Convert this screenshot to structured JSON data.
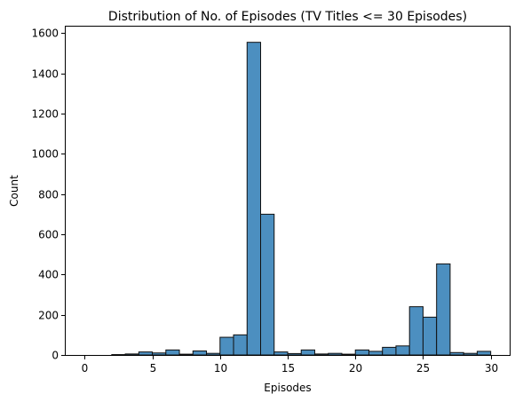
{
  "chart_data": {
    "type": "bar",
    "title": "Distribution of No. of Episodes (TV Titles <= 30 Episodes)",
    "xlabel": "Episodes",
    "ylabel": "Count",
    "xlim": [
      -1.4,
      31.4
    ],
    "ylim": [
      0,
      1633
    ],
    "xticks": [
      0,
      5,
      10,
      15,
      20,
      25,
      30
    ],
    "yticks": [
      0,
      200,
      400,
      600,
      800,
      1000,
      1200,
      1400,
      1600
    ],
    "bar_color": "#4c8fc0",
    "edge_color": "#111111",
    "grid": false,
    "bins": [
      {
        "start": 1,
        "end": 2,
        "value": 0
      },
      {
        "start": 2,
        "end": 3,
        "value": 2
      },
      {
        "start": 3,
        "end": 4,
        "value": 5
      },
      {
        "start": 4,
        "end": 5,
        "value": 15
      },
      {
        "start": 5,
        "end": 6,
        "value": 10
      },
      {
        "start": 6,
        "end": 7,
        "value": 25
      },
      {
        "start": 7,
        "end": 8,
        "value": 4
      },
      {
        "start": 8,
        "end": 9,
        "value": 20
      },
      {
        "start": 9,
        "end": 10,
        "value": 8
      },
      {
        "start": 10,
        "end": 11,
        "value": 88
      },
      {
        "start": 11,
        "end": 12,
        "value": 100
      },
      {
        "start": 12,
        "end": 13,
        "value": 1555
      },
      {
        "start": 13,
        "end": 14,
        "value": 700
      },
      {
        "start": 14,
        "end": 15,
        "value": 15
      },
      {
        "start": 15,
        "end": 16,
        "value": 7
      },
      {
        "start": 16,
        "end": 17,
        "value": 25
      },
      {
        "start": 17,
        "end": 18,
        "value": 5
      },
      {
        "start": 18,
        "end": 19,
        "value": 8
      },
      {
        "start": 19,
        "end": 20,
        "value": 4
      },
      {
        "start": 20,
        "end": 21,
        "value": 25
      },
      {
        "start": 21,
        "end": 22,
        "value": 18
      },
      {
        "start": 22,
        "end": 23,
        "value": 38
      },
      {
        "start": 23,
        "end": 24,
        "value": 45
      },
      {
        "start": 24,
        "end": 25,
        "value": 240
      },
      {
        "start": 25,
        "end": 26,
        "value": 188
      },
      {
        "start": 26,
        "end": 27,
        "value": 453
      },
      {
        "start": 27,
        "end": 28,
        "value": 12
      },
      {
        "start": 28,
        "end": 29,
        "value": 8
      },
      {
        "start": 29,
        "end": 30,
        "value": 18
      }
    ]
  }
}
